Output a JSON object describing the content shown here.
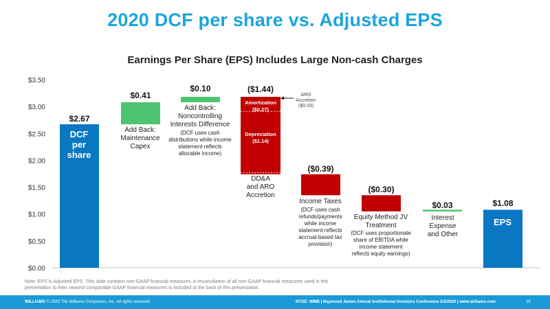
{
  "title": "2020 DCF per share vs. Adjusted EPS",
  "subtitle": "Earnings Per Share (EPS) Includes Large Non-cash Charges",
  "colors": {
    "title": "#1aa5dc",
    "blue": "#0a77c2",
    "green": "#4cc36f",
    "red": "#c00000",
    "footer": "#1a9ad6"
  },
  "chart_data": {
    "type": "bar",
    "subtype": "waterfall",
    "ylim": [
      0,
      3.5
    ],
    "yticks": [
      "$0.00",
      "$0.50",
      "$1.00",
      "$1.50",
      "$2.00",
      "$2.50",
      "$3.00",
      "$3.50"
    ],
    "ytick_values": [
      0,
      0.5,
      1,
      1.5,
      2,
      2.5,
      3,
      3.5
    ],
    "bars": [
      {
        "label": "DCF per share",
        "start": 0,
        "end": 2.67,
        "kind": "total",
        "value_label": "$2.67"
      },
      {
        "label": "Add Back: Maintenance Capex",
        "start": 2.67,
        "end": 3.08,
        "kind": "increase",
        "value_label": "$0.41"
      },
      {
        "label": "Add Back: Noncontrolling Interests Difference",
        "start": 3.08,
        "end": 3.18,
        "kind": "increase",
        "value_label": "$0.10",
        "note": "(DCF uses cash distributions while income statement reflects allocable income)"
      },
      {
        "label": "DD&A and ARO Accretion",
        "start": 3.18,
        "end": 1.74,
        "kind": "decrease",
        "value_label": "($1.44)",
        "segments": [
          {
            "label": "Amortization",
            "value_label": "($0.27)",
            "start": 3.18,
            "end": 2.91
          },
          {
            "label": "Depreciation",
            "value_label": "($1.14)",
            "start": 2.91,
            "end": 1.77
          },
          {
            "label": "ARO Accretion",
            "value_label": "($0.03)",
            "start": 1.77,
            "end": 1.74
          }
        ]
      },
      {
        "label": "Income Taxes",
        "start": 1.74,
        "end": 1.35,
        "kind": "decrease",
        "value_label": "($0.39)",
        "note": "(DCF uses cash refunds/payments while income statement reflects accrual-based tax provision)"
      },
      {
        "label": "Equity Method JV Treatment",
        "start": 1.35,
        "end": 1.05,
        "kind": "decrease",
        "value_label": "($0.30)",
        "note": "(DCF uses proportionate share of EBITDA while income statement reflects equity earnings)"
      },
      {
        "label": "Interest Expense and Other",
        "start": 1.05,
        "end": 1.08,
        "kind": "increase",
        "value_label": "$0.03"
      },
      {
        "label": "EPS",
        "start": 0,
        "end": 1.08,
        "kind": "total",
        "value_label": "$1.08"
      }
    ]
  },
  "labels": {
    "dcf": [
      "DCF",
      "per",
      "share"
    ],
    "eps": "EPS",
    "capex": [
      "Add Back:",
      "Maintenance",
      "Capex"
    ],
    "nci": [
      "Add Back:",
      "Noncontrolling",
      "Interests Difference"
    ],
    "nci_note": [
      "(DCF uses cash",
      "distributions while income",
      "statement reflects",
      "allocable income)"
    ],
    "dda": [
      "DD&A",
      "and ARO",
      "Accretion"
    ],
    "amort": [
      "Amortization",
      "($0.27)"
    ],
    "dep": [
      "Depreciation",
      "($1.14)"
    ],
    "aro": [
      "ARO",
      "Accretion",
      "($0.03)"
    ],
    "tax": "Income Taxes",
    "tax_note": [
      "(DCF uses cash",
      "refunds/payments",
      "while income",
      "statement reflects",
      "accrual-based tax",
      "provision)"
    ],
    "jv": [
      "Equity Method JV",
      "Treatment"
    ],
    "jv_note": [
      "(DCF uses proportionate",
      "share of EBITDA while",
      "income statement",
      "reflects equity earnings)"
    ],
    "interest": [
      "Interest",
      "Expense",
      "and Other"
    ]
  },
  "note": "Note: EPS is Adjusted EPS. This slide contains non-GAAP financial measures. A reconciliation of all non-GAAP financial measures used in this presentation to their nearest comparable GAAP financial measures is included at the back of this presentation.",
  "footer": {
    "company": "WILLIAMS",
    "copyright": "© 2020 The Williams Companies, Inc. All rights reserved.",
    "info": "NYSE: WMB  |  Raymond James Annual Institutional Investors Conference 2/3/2020  |  www.williams.com",
    "page": "25"
  }
}
